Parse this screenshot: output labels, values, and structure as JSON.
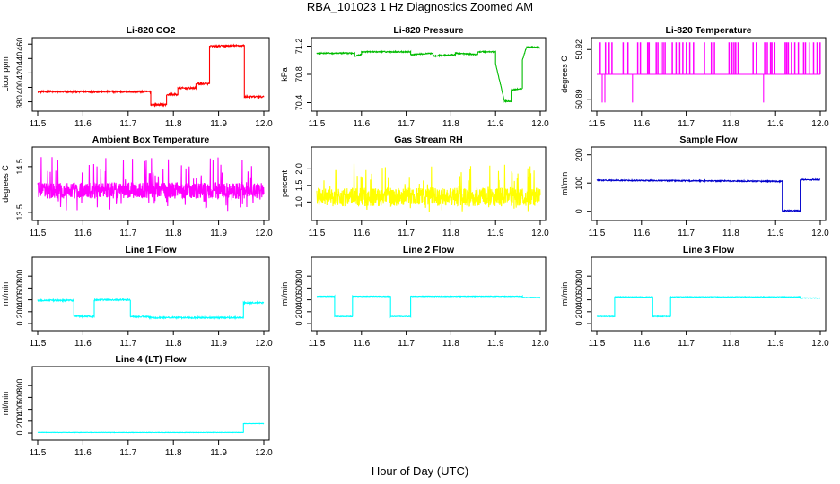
{
  "page": {
    "title": "RBA_101023  1 Hz Diagnostics Zoomed AM",
    "xlabel": "Hour of Day (UTC)"
  },
  "chart_data": [
    {
      "type": "line",
      "title": "Li-820 CO2",
      "ylabel": "Licor ppm",
      "color": "#ff0000",
      "xlim": [
        11.5,
        12.0
      ],
      "ylim": [
        372,
        464
      ],
      "xticks": [
        "11.5",
        "11.6",
        "11.7",
        "11.8",
        "11.9",
        "12.0"
      ],
      "yticks": [
        "380",
        "400",
        "420",
        "440",
        "460"
      ],
      "noise": 1.2,
      "segments": [
        [
          11.5,
          11.75,
          394,
          394
        ],
        [
          11.75,
          11.785,
          376,
          376
        ],
        [
          11.785,
          11.81,
          390,
          390
        ],
        [
          11.81,
          11.85,
          399,
          399
        ],
        [
          11.85,
          11.88,
          405,
          405
        ],
        [
          11.88,
          11.957,
          457,
          458
        ],
        [
          11.957,
          12.0,
          387,
          387
        ]
      ]
    },
    {
      "type": "line",
      "title": "Li-820 Pressure",
      "ylabel": "kPa",
      "color": "#00bb00",
      "xlim": [
        11.5,
        12.0
      ],
      "ylim": [
        70.33,
        71.27
      ],
      "xticks": [
        "11.5",
        "11.6",
        "11.7",
        "11.8",
        "11.9",
        "12.0"
      ],
      "yticks": [
        "70.4",
        "70.8",
        "71.2"
      ],
      "noise": 0.008,
      "segments": [
        [
          11.5,
          11.585,
          71.1,
          71.1
        ],
        [
          11.585,
          11.6,
          71.06,
          71.08
        ],
        [
          11.6,
          11.71,
          71.12,
          71.12
        ],
        [
          11.71,
          11.76,
          71.08,
          71.1
        ],
        [
          11.76,
          11.81,
          71.06,
          71.08
        ],
        [
          11.81,
          11.86,
          71.1,
          71.08
        ],
        [
          11.86,
          11.9,
          71.12,
          71.12
        ],
        [
          11.9,
          11.92,
          70.95,
          70.42
        ],
        [
          11.92,
          11.935,
          70.42,
          70.42
        ],
        [
          11.935,
          11.96,
          70.58,
          70.6
        ],
        [
          11.96,
          11.97,
          71.0,
          71.2
        ],
        [
          11.97,
          12.0,
          71.19,
          71.18
        ]
      ]
    },
    {
      "type": "line",
      "title": "Li-820 Temperature",
      "ylabel": "degrees C",
      "color": "#ff00ff",
      "xlim": [
        11.5,
        12.0
      ],
      "ylim": [
        50.885,
        50.925
      ],
      "xticks": [
        "11.5",
        "11.6",
        "11.7",
        "11.8",
        "11.9",
        "12.0"
      ],
      "yticks": [
        "50.89",
        "50.92"
      ],
      "bands": [
        50.905,
        50.924
      ],
      "drops": [
        11.512,
        11.518,
        11.58,
        11.873
      ]
    },
    {
      "type": "line",
      "title": "Ambient Box Temperature",
      "ylabel": "degrees C",
      "color": "#ff00ff",
      "xlim": [
        11.5,
        12.0
      ],
      "ylim": [
        13.4,
        14.85
      ],
      "xticks": [
        "11.5",
        "11.6",
        "11.7",
        "11.8",
        "11.9",
        "12.0"
      ],
      "yticks": [
        "13.5",
        "14.5"
      ],
      "base": 13.98,
      "spread": 0.18,
      "spike_up": 0.75,
      "spike_down": 0.45
    },
    {
      "type": "line",
      "title": "Gas Stream RH",
      "ylabel": "percent",
      "color": "#ffff00",
      "xlim": [
        11.5,
        12.0
      ],
      "ylim": [
        0.55,
        2.55
      ],
      "xticks": [
        "11.5",
        "11.6",
        "11.7",
        "11.8",
        "11.9",
        "12.0"
      ],
      "yticks": [
        "1.0",
        "1.5",
        "2.0"
      ],
      "base": 1.15,
      "spread": 0.28,
      "spike_up": 1.05,
      "spike_down": 0.5
    },
    {
      "type": "line",
      "title": "Sample Flow",
      "ylabel": "ml/min",
      "color": "#0000cc",
      "xlim": [
        11.5,
        12.0
      ],
      "ylim": [
        -20,
        215
      ],
      "xticks": [
        "11.5",
        "11.6",
        "11.7",
        "11.8",
        "11.9",
        "12.0"
      ],
      "yticks": [
        "0",
        "100",
        "200"
      ],
      "noise": 2,
      "segments": [
        [
          11.5,
          11.915,
          110,
          106
        ],
        [
          11.915,
          11.955,
          2,
          2
        ],
        [
          11.955,
          12.0,
          112,
          112
        ]
      ]
    },
    {
      "type": "line",
      "title": "Line 1 Flow",
      "ylabel": "ml/min",
      "color": "#00ffff",
      "xlim": [
        11.5,
        12.0
      ],
      "ylim": [
        -60,
        1060
      ],
      "xticks": [
        "11.5",
        "11.6",
        "11.7",
        "11.8",
        "11.9",
        "12.0"
      ],
      "yticks": [
        "0",
        "200",
        "400",
        "600",
        "800"
      ],
      "noise": 12,
      "segments": [
        [
          11.5,
          11.58,
          390,
          390
        ],
        [
          11.58,
          11.625,
          120,
          120
        ],
        [
          11.625,
          11.705,
          400,
          400
        ],
        [
          11.705,
          11.745,
          115,
          115
        ],
        [
          11.745,
          11.955,
          100,
          100
        ],
        [
          11.955,
          12.0,
          350,
          350
        ]
      ]
    },
    {
      "type": "line",
      "title": "Line 2 Flow",
      "ylabel": "ml/min",
      "color": "#00ffff",
      "xlim": [
        11.5,
        12.0
      ],
      "ylim": [
        -60,
        1060
      ],
      "xticks": [
        "11.5",
        "11.6",
        "11.7",
        "11.8",
        "11.9",
        "12.0"
      ],
      "yticks": [
        "0",
        "200",
        "400",
        "600",
        "800"
      ],
      "noise": 5,
      "segments": [
        [
          11.5,
          11.54,
          460,
          460
        ],
        [
          11.54,
          11.58,
          120,
          120
        ],
        [
          11.58,
          11.665,
          460,
          460
        ],
        [
          11.665,
          11.71,
          120,
          120
        ],
        [
          11.71,
          11.96,
          460,
          460
        ],
        [
          11.96,
          12.0,
          440,
          440
        ]
      ]
    },
    {
      "type": "line",
      "title": "Line 3 Flow",
      "ylabel": "ml/min",
      "color": "#00ffff",
      "xlim": [
        11.5,
        12.0
      ],
      "ylim": [
        -60,
        1060
      ],
      "xticks": [
        "11.5",
        "11.6",
        "11.7",
        "11.8",
        "11.9",
        "12.0"
      ],
      "yticks": [
        "0",
        "200",
        "400",
        "600",
        "800"
      ],
      "noise": 5,
      "segments": [
        [
          11.5,
          11.54,
          120,
          120
        ],
        [
          11.54,
          11.625,
          450,
          450
        ],
        [
          11.625,
          11.665,
          120,
          120
        ],
        [
          11.665,
          11.955,
          450,
          450
        ],
        [
          11.955,
          12.0,
          430,
          430
        ]
      ]
    },
    {
      "type": "line",
      "title": "Line 4 (LT) Flow",
      "ylabel": "ml/min",
      "color": "#00ffff",
      "xlim": [
        11.5,
        12.0
      ],
      "ylim": [
        -60,
        1060
      ],
      "xticks": [
        "11.5",
        "11.6",
        "11.7",
        "11.8",
        "11.9",
        "12.0"
      ],
      "yticks": [
        "0",
        "200",
        "400",
        "600",
        "800"
      ],
      "noise": 3,
      "segments": [
        [
          11.5,
          11.955,
          10,
          10
        ],
        [
          11.955,
          12.0,
          160,
          160
        ]
      ]
    }
  ]
}
